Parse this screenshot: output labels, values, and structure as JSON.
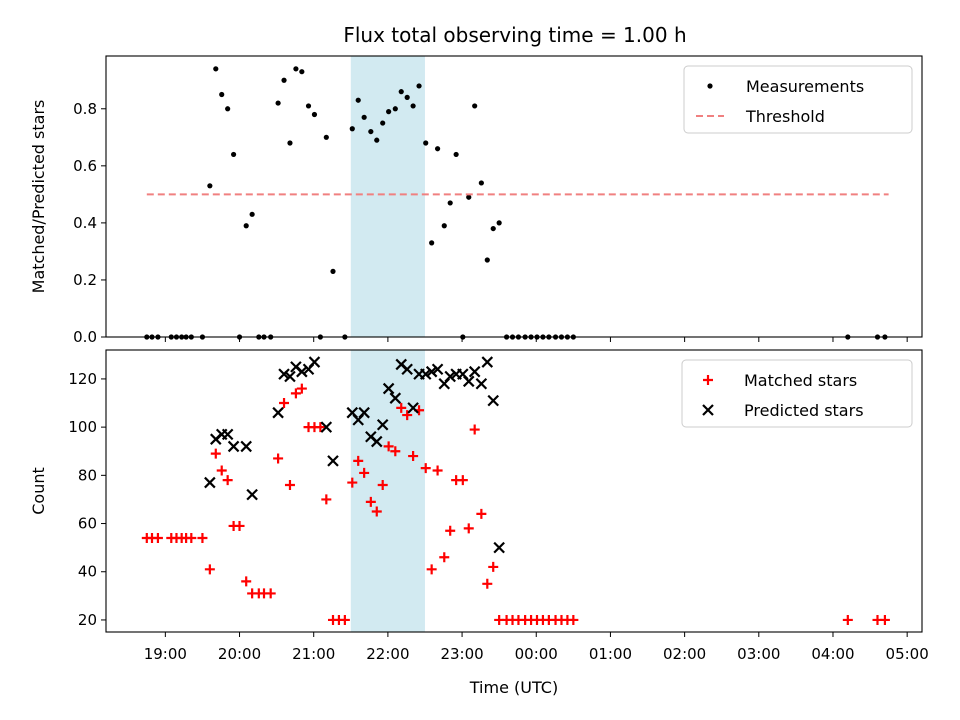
{
  "chart_data": {
    "title": "Flux total observing time = 1.00 h",
    "shaded_interval": [
      21.5,
      22.5
    ],
    "x_range": [
      18.2,
      29.2
    ],
    "x_ticks": [
      {
        "t": 19,
        "label": "19:00"
      },
      {
        "t": 20,
        "label": "20:00"
      },
      {
        "t": 21,
        "label": "21:00"
      },
      {
        "t": 22,
        "label": "22:00"
      },
      {
        "t": 23,
        "label": "23:00"
      },
      {
        "t": 24,
        "label": "00:00"
      },
      {
        "t": 25,
        "label": "01:00"
      },
      {
        "t": 26,
        "label": "02:00"
      },
      {
        "t": 27,
        "label": "03:00"
      },
      {
        "t": 28,
        "label": "04:00"
      },
      {
        "t": 29,
        "label": "05:00"
      }
    ],
    "xlabel": "Time (UTC)",
    "panels": [
      {
        "type": "scatter",
        "ylabel": "Matched/Predicted stars",
        "ylim": [
          0,
          0.985
        ],
        "yticks": [
          {
            "v": 0.0,
            "label": "0.0"
          },
          {
            "v": 0.2,
            "label": "0.2"
          },
          {
            "v": 0.4,
            "label": "0.4"
          },
          {
            "v": 0.6,
            "label": "0.6"
          },
          {
            "v": 0.8,
            "label": "0.8"
          }
        ],
        "legend_position": "top-right",
        "series": [
          {
            "name": "Measurements",
            "marker": "dot",
            "color": "#000000",
            "points": [
              [
                18.75,
                0
              ],
              [
                18.82,
                0
              ],
              [
                18.9,
                0
              ],
              [
                19.08,
                0
              ],
              [
                19.15,
                0
              ],
              [
                19.22,
                0
              ],
              [
                19.28,
                0
              ],
              [
                19.35,
                0
              ],
              [
                19.5,
                0
              ],
              [
                19.6,
                0.53
              ],
              [
                19.68,
                0.94
              ],
              [
                19.76,
                0.85
              ],
              [
                19.84,
                0.8
              ],
              [
                19.92,
                0.64
              ],
              [
                20.0,
                0
              ],
              [
                20.09,
                0.39
              ],
              [
                20.17,
                0.43
              ],
              [
                20.26,
                0
              ],
              [
                20.33,
                0
              ],
              [
                20.42,
                0
              ],
              [
                20.52,
                0.82
              ],
              [
                20.6,
                0.9
              ],
              [
                20.68,
                0.68
              ],
              [
                20.76,
                0.94
              ],
              [
                20.84,
                0.93
              ],
              [
                20.93,
                0.81
              ],
              [
                21.01,
                0.78
              ],
              [
                21.09,
                0
              ],
              [
                21.17,
                0.7
              ],
              [
                21.26,
                0.23
              ],
              [
                21.42,
                0
              ],
              [
                21.52,
                0.73
              ],
              [
                21.6,
                0.83
              ],
              [
                21.68,
                0.77
              ],
              [
                21.77,
                0.72
              ],
              [
                21.85,
                0.69
              ],
              [
                21.93,
                0.75
              ],
              [
                22.01,
                0.79
              ],
              [
                22.1,
                0.8
              ],
              [
                22.18,
                0.86
              ],
              [
                22.26,
                0.84
              ],
              [
                22.34,
                0.81
              ],
              [
                22.42,
                0.88
              ],
              [
                22.51,
                0.68
              ],
              [
                22.59,
                0.33
              ],
              [
                22.67,
                0.66
              ],
              [
                22.76,
                0.39
              ],
              [
                22.84,
                0.47
              ],
              [
                22.92,
                0.64
              ],
              [
                23.01,
                0
              ],
              [
                23.09,
                0.49
              ],
              [
                23.17,
                0.81
              ],
              [
                23.26,
                0.54
              ],
              [
                23.34,
                0.27
              ],
              [
                23.42,
                0.38
              ],
              [
                23.5,
                0.4
              ],
              [
                23.6,
                0
              ],
              [
                23.68,
                0
              ],
              [
                23.76,
                0
              ],
              [
                23.85,
                0
              ],
              [
                23.93,
                0
              ],
              [
                24.01,
                0
              ],
              [
                24.09,
                0
              ],
              [
                24.17,
                0
              ],
              [
                24.26,
                0
              ],
              [
                24.34,
                0
              ],
              [
                24.42,
                0
              ],
              [
                24.5,
                0
              ],
              [
                28.2,
                0
              ],
              [
                28.6,
                0
              ],
              [
                28.7,
                0
              ]
            ]
          },
          {
            "name": "Threshold",
            "marker": "dashed-line",
            "color": "#f08080",
            "points": [
              [
                18.75,
                0.5
              ],
              [
                28.75,
                0.5
              ]
            ]
          }
        ]
      },
      {
        "type": "scatter",
        "ylabel": "Count",
        "ylim": [
          15,
          132
        ],
        "yticks": [
          {
            "v": 20,
            "label": "20"
          },
          {
            "v": 40,
            "label": "40"
          },
          {
            "v": 60,
            "label": "60"
          },
          {
            "v": 80,
            "label": "80"
          },
          {
            "v": 100,
            "label": "100"
          },
          {
            "v": 120,
            "label": "120"
          }
        ],
        "legend_position": "top-right",
        "series": [
          {
            "name": "Matched stars",
            "marker": "plus",
            "color": "#ff0000",
            "points": [
              [
                18.75,
                54
              ],
              [
                18.82,
                54
              ],
              [
                18.9,
                54
              ],
              [
                19.08,
                54
              ],
              [
                19.15,
                54
              ],
              [
                19.22,
                54
              ],
              [
                19.28,
                54
              ],
              [
                19.35,
                54
              ],
              [
                19.5,
                54
              ],
              [
                19.6,
                41
              ],
              [
                19.68,
                89
              ],
              [
                19.76,
                82
              ],
              [
                19.84,
                78
              ],
              [
                19.92,
                59
              ],
              [
                20.0,
                59
              ],
              [
                20.09,
                36
              ],
              [
                20.17,
                31
              ],
              [
                20.26,
                31
              ],
              [
                20.33,
                31
              ],
              [
                20.42,
                31
              ],
              [
                20.52,
                87
              ],
              [
                20.6,
                110
              ],
              [
                20.68,
                76
              ],
              [
                20.76,
                114
              ],
              [
                20.84,
                116
              ],
              [
                20.93,
                100
              ],
              [
                21.01,
                100
              ],
              [
                21.09,
                100
              ],
              [
                21.17,
                70
              ],
              [
                21.26,
                20
              ],
              [
                21.34,
                20
              ],
              [
                21.42,
                20
              ],
              [
                21.52,
                77
              ],
              [
                21.6,
                86
              ],
              [
                21.68,
                81
              ],
              [
                21.77,
                69
              ],
              [
                21.85,
                65
              ],
              [
                21.93,
                76
              ],
              [
                22.01,
                92
              ],
              [
                22.1,
                90
              ],
              [
                22.18,
                108
              ],
              [
                22.26,
                105
              ],
              [
                22.34,
                88
              ],
              [
                22.42,
                107
              ],
              [
                22.51,
                83
              ],
              [
                22.59,
                41
              ],
              [
                22.67,
                82
              ],
              [
                22.76,
                46
              ],
              [
                22.84,
                57
              ],
              [
                22.92,
                78
              ],
              [
                23.01,
                78
              ],
              [
                23.09,
                58
              ],
              [
                23.17,
                99
              ],
              [
                23.26,
                64
              ],
              [
                23.34,
                35
              ],
              [
                23.42,
                42
              ],
              [
                23.5,
                20
              ],
              [
                23.6,
                20
              ],
              [
                23.68,
                20
              ],
              [
                23.76,
                20
              ],
              [
                23.85,
                20
              ],
              [
                23.93,
                20
              ],
              [
                24.01,
                20
              ],
              [
                24.09,
                20
              ],
              [
                24.17,
                20
              ],
              [
                24.26,
                20
              ],
              [
                24.34,
                20
              ],
              [
                24.42,
                20
              ],
              [
                24.5,
                20
              ],
              [
                28.2,
                20
              ],
              [
                28.6,
                20
              ],
              [
                28.7,
                20
              ]
            ]
          },
          {
            "name": "Predicted stars",
            "marker": "x",
            "color": "#000000",
            "points": [
              [
                19.6,
                77
              ],
              [
                19.68,
                95
              ],
              [
                19.76,
                97
              ],
              [
                19.84,
                97
              ],
              [
                19.92,
                92
              ],
              [
                20.09,
                92
              ],
              [
                20.17,
                72
              ],
              [
                20.52,
                106
              ],
              [
                20.6,
                122
              ],
              [
                20.68,
                121
              ],
              [
                20.76,
                125
              ],
              [
                20.84,
                123
              ],
              [
                20.93,
                124
              ],
              [
                21.01,
                127
              ],
              [
                21.17,
                100
              ],
              [
                21.26,
                86
              ],
              [
                21.52,
                106
              ],
              [
                21.6,
                103
              ],
              [
                21.68,
                106
              ],
              [
                21.77,
                96
              ],
              [
                21.85,
                94
              ],
              [
                21.93,
                101
              ],
              [
                22.01,
                116
              ],
              [
                22.1,
                112
              ],
              [
                22.18,
                126
              ],
              [
                22.26,
                124
              ],
              [
                22.34,
                108
              ],
              [
                22.42,
                122
              ],
              [
                22.51,
                122
              ],
              [
                22.59,
                123
              ],
              [
                22.67,
                124
              ],
              [
                22.76,
                118
              ],
              [
                22.84,
                121
              ],
              [
                22.92,
                122
              ],
              [
                23.01,
                122
              ],
              [
                23.09,
                119
              ],
              [
                23.17,
                123
              ],
              [
                23.26,
                118
              ],
              [
                23.34,
                127
              ],
              [
                23.42,
                111
              ],
              [
                23.5,
                50
              ]
            ]
          }
        ]
      }
    ]
  }
}
